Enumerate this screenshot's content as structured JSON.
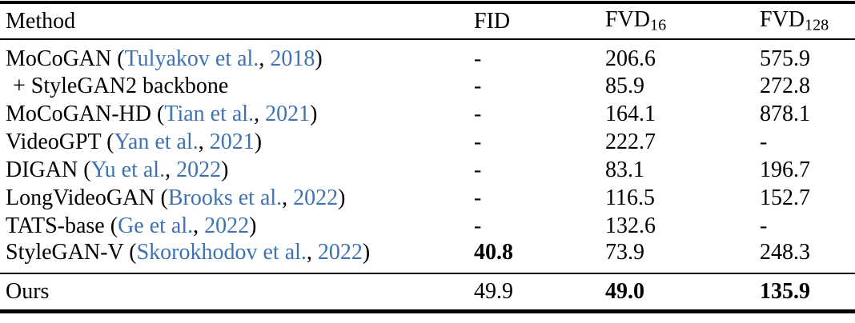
{
  "colors": {
    "background": "#ffffff",
    "text": "#000000",
    "rule": "#000000",
    "citation_blue": "#3e72b0"
  },
  "punctuation": {
    "open_paren": " (",
    "separator": ", ",
    "close_paren": ")"
  },
  "table": {
    "header": {
      "method": "Method",
      "fid": "FID",
      "fvd16": {
        "base": "FVD",
        "sub": "16"
      },
      "fvd128": {
        "base": "FVD",
        "sub": "128"
      }
    },
    "rows": [
      {
        "method": "MoCoGAN",
        "citation": "Tulyakov et al.",
        "year": "2018",
        "indent": false,
        "footer": false,
        "fid": "-",
        "fid_bold": false,
        "fvd16": "206.6",
        "fvd16_bold": false,
        "fvd128": "575.9",
        "fvd128_bold": false
      },
      {
        "method": "+ StyleGAN2 backbone",
        "citation": null,
        "year": null,
        "indent": true,
        "footer": false,
        "fid": "-",
        "fid_bold": false,
        "fvd16": "85.9",
        "fvd16_bold": false,
        "fvd128": "272.8",
        "fvd128_bold": false
      },
      {
        "method": "MoCoGAN-HD",
        "citation": "Tian et al.",
        "year": "2021",
        "indent": false,
        "footer": false,
        "fid": "-",
        "fid_bold": false,
        "fvd16": "164.1",
        "fvd16_bold": false,
        "fvd128": "878.1",
        "fvd128_bold": false
      },
      {
        "method": "VideoGPT",
        "citation": "Yan et al.",
        "year": "2021",
        "indent": false,
        "footer": false,
        "fid": "-",
        "fid_bold": false,
        "fvd16": "222.7",
        "fvd16_bold": false,
        "fvd128": "-",
        "fvd128_bold": false
      },
      {
        "method": "DIGAN",
        "citation": "Yu et al.",
        "year": "2022",
        "indent": false,
        "footer": false,
        "fid": "-",
        "fid_bold": false,
        "fvd16": "83.1",
        "fvd16_bold": false,
        "fvd128": "196.7",
        "fvd128_bold": false
      },
      {
        "method": "LongVideoGAN",
        "citation": "Brooks et al.",
        "year": "2022",
        "indent": false,
        "footer": false,
        "fid": "-",
        "fid_bold": false,
        "fvd16": "116.5",
        "fvd16_bold": false,
        "fvd128": "152.7",
        "fvd128_bold": false
      },
      {
        "method": "TATS-base",
        "citation": "Ge et al.",
        "year": "2022",
        "indent": false,
        "footer": false,
        "fid": "-",
        "fid_bold": false,
        "fvd16": "132.6",
        "fvd16_bold": false,
        "fvd128": "-",
        "fvd128_bold": false
      },
      {
        "method": "StyleGAN-V",
        "citation": "Skorokhodov et al.",
        "year": "2022",
        "indent": false,
        "footer": false,
        "fid": "40.8",
        "fid_bold": true,
        "fvd16": "73.9",
        "fvd16_bold": false,
        "fvd128": "248.3",
        "fvd128_bold": false
      },
      {
        "method": "Ours",
        "citation": null,
        "year": null,
        "indent": false,
        "footer": true,
        "fid": "49.9",
        "fid_bold": false,
        "fvd16": "49.0",
        "fvd16_bold": true,
        "fvd128": "135.9",
        "fvd128_bold": true
      }
    ]
  }
}
